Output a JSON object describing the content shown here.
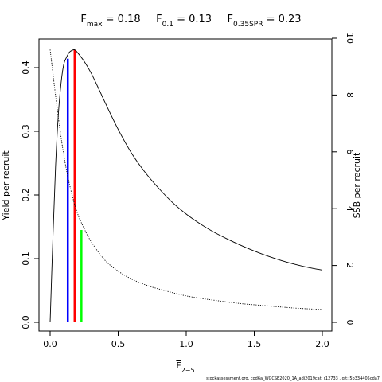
{
  "chart_data": {
    "type": "line",
    "title_parts": [
      {
        "base": "F",
        "sub": "max",
        "value": " = 0.18"
      },
      {
        "base": "F",
        "sub": "0.1",
        "value": " = 0.13"
      },
      {
        "base": "F",
        "sub": "0.35SPR",
        "value": " = 0.23"
      }
    ],
    "xlabel": {
      "base": "F",
      "sub": "2−5"
    },
    "ylabel_left": "Yield per recruit",
    "ylabel_right": "SSB per recruit",
    "xlim": [
      0,
      2
    ],
    "ylim_left": [
      0,
      0.43
    ],
    "ylim_right": [
      0,
      10
    ],
    "xticks": [
      0.0,
      0.5,
      1.0,
      1.5,
      2.0
    ],
    "xtick_labels": [
      "0.0",
      "0.5",
      "1.0",
      "1.5",
      "2.0"
    ],
    "yticks_left": [
      0.0,
      0.1,
      0.2,
      0.3,
      0.4
    ],
    "ytick_labels_left": [
      "0.0",
      "0.1",
      "0.2",
      "0.3",
      "0.4"
    ],
    "yticks_right": [
      0,
      2,
      4,
      6,
      8,
      10
    ],
    "ytick_labels_right": [
      "0",
      "2",
      "4",
      "6",
      "8",
      "10"
    ],
    "series": [
      {
        "axis": "left",
        "style": "solid",
        "x": [
          0.0,
          0.02,
          0.04,
          0.06,
          0.08,
          0.1,
          0.12,
          0.14,
          0.16,
          0.18,
          0.2,
          0.25,
          0.3,
          0.35,
          0.4,
          0.5,
          0.6,
          0.7,
          0.8,
          0.9,
          1.0,
          1.1,
          1.2,
          1.3,
          1.4,
          1.5,
          1.6,
          1.7,
          1.8,
          1.9,
          2.0
        ],
        "y": [
          0.0,
          0.13,
          0.245,
          0.325,
          0.375,
          0.405,
          0.416,
          0.424,
          0.427,
          0.428,
          0.424,
          0.41,
          0.392,
          0.37,
          0.347,
          0.303,
          0.265,
          0.235,
          0.21,
          0.188,
          0.17,
          0.155,
          0.142,
          0.131,
          0.121,
          0.112,
          0.104,
          0.097,
          0.091,
          0.086,
          0.082
        ]
      },
      {
        "axis": "right",
        "style": "dotted",
        "x": [
          0.0,
          0.05,
          0.1,
          0.15,
          0.2,
          0.25,
          0.3,
          0.4,
          0.5,
          0.6,
          0.7,
          0.8,
          1.0,
          1.2,
          1.4,
          1.6,
          1.8,
          2.0
        ],
        "y": [
          9.6,
          7.6,
          5.9,
          4.7,
          3.85,
          3.3,
          2.85,
          2.2,
          1.8,
          1.52,
          1.32,
          1.17,
          0.93,
          0.78,
          0.66,
          0.58,
          0.5,
          0.45
        ]
      }
    ],
    "reference_lines": [
      {
        "label": "F0.1",
        "x": 0.13,
        "y_top": 0.414,
        "color": "#0000ff"
      },
      {
        "label": "Fmax",
        "x": 0.18,
        "y_top": 0.428,
        "color": "#ff0000"
      },
      {
        "label": "F0.35SPR",
        "x": 0.23,
        "y_top": 0.145,
        "color": "#00ff00"
      }
    ],
    "grid": false,
    "footer": "stockassessment.org, cod6a_WGCSE2020_1A_adj2019cat, r12733 , git: 5b334405cda7"
  }
}
